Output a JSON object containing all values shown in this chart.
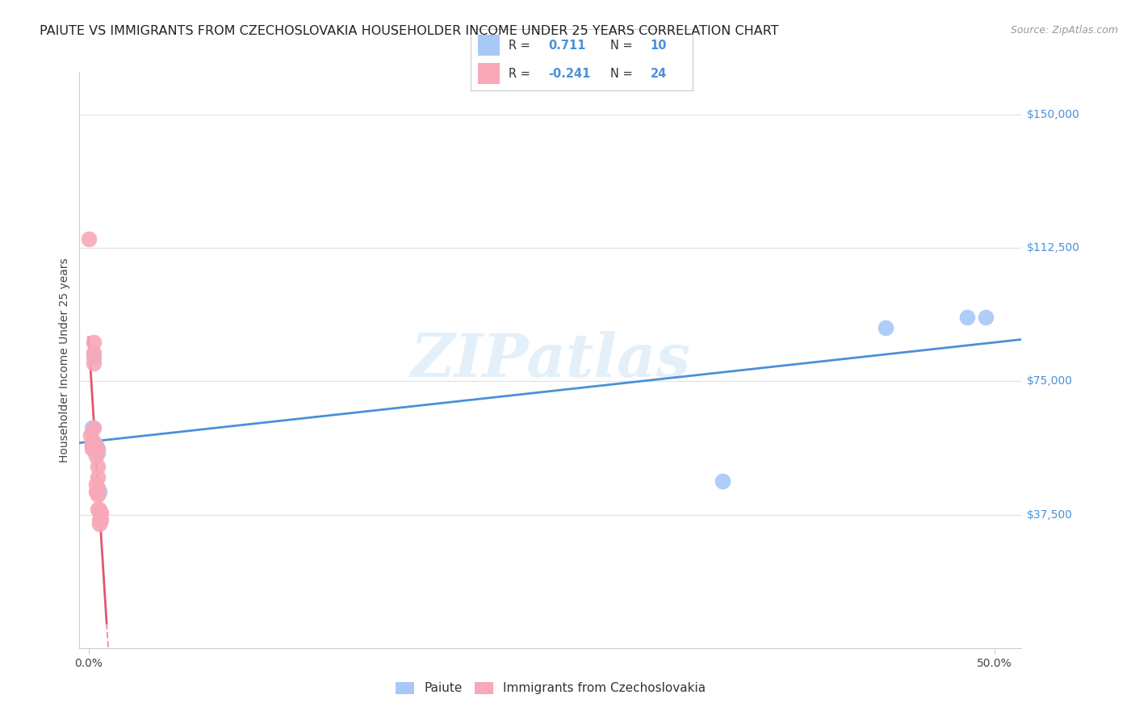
{
  "title": "PAIUTE VS IMMIGRANTS FROM CZECHOSLOVAKIA HOUSEHOLDER INCOME UNDER 25 YEARS CORRELATION CHART",
  "source": "Source: ZipAtlas.com",
  "ylabel": "Householder Income Under 25 years",
  "ytick_labels": [
    "$37,500",
    "$75,000",
    "$112,500",
    "$150,000"
  ],
  "ytick_values": [
    37500,
    75000,
    112500,
    150000
  ],
  "ymin": 0,
  "ymax": 162000,
  "xmin": -0.005,
  "xmax": 0.515,
  "watermark": "ZIPatlas",
  "paiute_color": "#a8c8f8",
  "immigrant_color": "#f8a8b8",
  "paiute_line_color": "#4a90d9",
  "immigrant_line_color": "#e05575",
  "paiute_x": [
    0.002,
    0.002,
    0.003,
    0.004,
    0.005,
    0.006,
    0.35,
    0.44,
    0.485,
    0.495
  ],
  "paiute_y": [
    62000,
    57000,
    82000,
    57000,
    55000,
    44000,
    47000,
    90000,
    93000,
    93000
  ],
  "immigrant_x": [
    0.0,
    0.001,
    0.002,
    0.002,
    0.002,
    0.003,
    0.003,
    0.003,
    0.003,
    0.003,
    0.004,
    0.004,
    0.004,
    0.005,
    0.005,
    0.005,
    0.005,
    0.005,
    0.005,
    0.006,
    0.006,
    0.006,
    0.007,
    0.007
  ],
  "immigrant_y": [
    115000,
    60000,
    58000,
    57000,
    56000,
    86000,
    83000,
    80000,
    62000,
    58000,
    54000,
    46000,
    44000,
    56000,
    51000,
    48000,
    45000,
    43000,
    39000,
    39000,
    36000,
    35000,
    38000,
    36000
  ],
  "background_color": "#ffffff",
  "grid_color": "#e0e0e0",
  "title_fontsize": 11.5,
  "axis_label_fontsize": 10,
  "tick_fontsize": 10,
  "legend_fontsize": 11,
  "legend1_R": "0.711",
  "legend1_N": "10",
  "legend2_R": "-0.241",
  "legend2_N": "24"
}
